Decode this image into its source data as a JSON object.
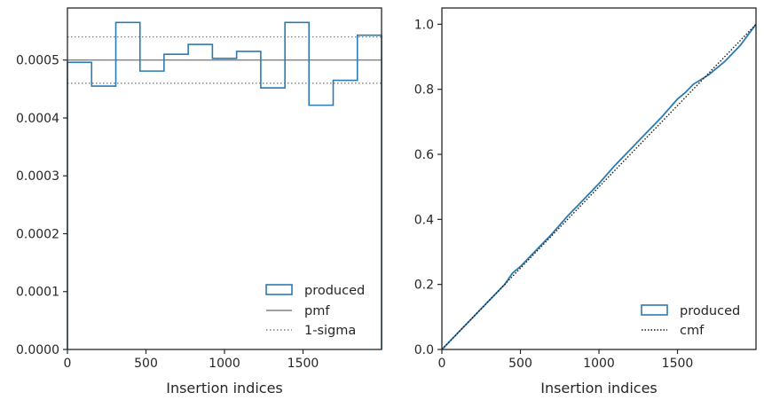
{
  "chart_data": [
    {
      "type": "step",
      "xlabel": "Insertion indices",
      "ylabel": "",
      "xlim": [
        0,
        2000
      ],
      "ylim": [
        0,
        0.00059
      ],
      "xticks": [
        0,
        500,
        1000,
        1500
      ],
      "yticks": [
        "0.0000",
        "0.0001",
        "0.0002",
        "0.0003",
        "0.0004",
        "0.0005"
      ],
      "bin_edges": [
        0,
        154,
        308,
        462,
        615,
        769,
        923,
        1077,
        1231,
        1385,
        1538,
        1692,
        1846,
        2000
      ],
      "series": [
        {
          "name": "produced",
          "kind": "hist",
          "values": [
            0.000496,
            0.000455,
            0.000565,
            0.000481,
            0.00051,
            0.000527,
            0.000503,
            0.000515,
            0.000452,
            0.000565,
            0.000422,
            0.000465,
            0.000543
          ]
        },
        {
          "name": "pmf",
          "kind": "hline",
          "value": 0.0005
        },
        {
          "name": "1-sigma",
          "kind": "hlines",
          "values": [
            0.00046,
            0.00054
          ]
        }
      ],
      "legend": {
        "position": "lower-right",
        "entries": [
          "produced",
          "pmf",
          "1-sigma"
        ]
      }
    },
    {
      "type": "line",
      "xlabel": "Insertion indices",
      "ylabel": "",
      "xlim": [
        0,
        2000
      ],
      "ylim": [
        0,
        1.05
      ],
      "xticks": [
        0,
        500,
        1000,
        1500
      ],
      "yticks": [
        "0.0",
        "0.2",
        "0.4",
        "0.6",
        "0.8",
        "1.0"
      ],
      "series": [
        {
          "name": "produced",
          "kind": "ecdf",
          "x": [
            0,
            50,
            100,
            200,
            300,
            400,
            450,
            500,
            600,
            700,
            800,
            850,
            900,
            1000,
            1100,
            1200,
            1300,
            1400,
            1500,
            1550,
            1600,
            1700,
            1800,
            1900,
            2000
          ],
          "y": [
            0,
            0.025,
            0.05,
            0.1,
            0.15,
            0.2,
            0.235,
            0.255,
            0.305,
            0.355,
            0.41,
            0.435,
            0.46,
            0.51,
            0.565,
            0.615,
            0.665,
            0.715,
            0.77,
            0.79,
            0.815,
            0.845,
            0.885,
            0.935,
            1.0
          ]
        },
        {
          "name": "cmf",
          "kind": "line",
          "x": [
            0,
            2000
          ],
          "y": [
            0,
            1.0
          ]
        }
      ],
      "legend": {
        "position": "lower-right",
        "entries": [
          "produced",
          "cmf"
        ]
      }
    }
  ],
  "colors": {
    "produced": "#2b7bb0",
    "pmf": "#808080",
    "sigma": "#808080",
    "cmf": "#1a1a1a",
    "axis": "#262626"
  }
}
